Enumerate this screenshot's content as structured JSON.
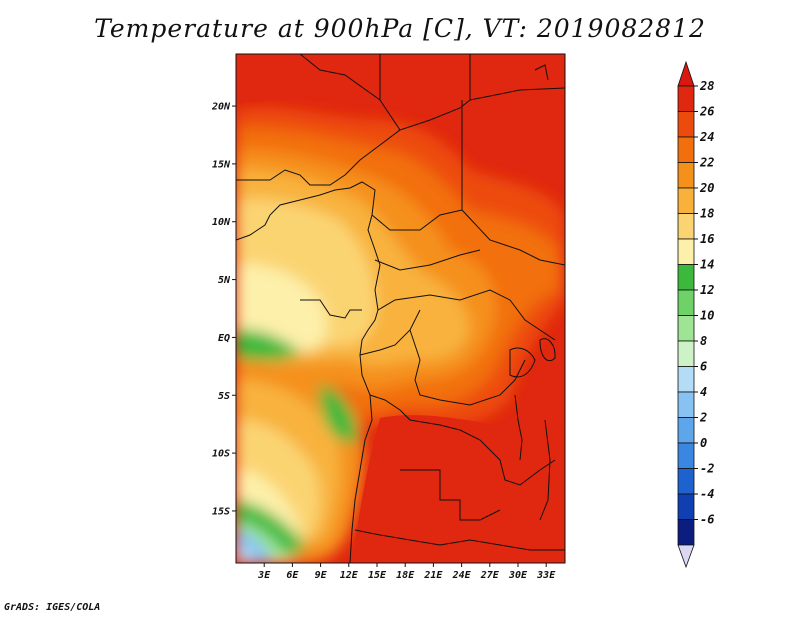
{
  "title": "Temperature at 900hPa [C], VT: 2019082812",
  "credit": "GrADS: IGES/COLA",
  "map": {
    "lon_range": [
      0,
      35
    ],
    "lat_range": [
      -19.5,
      24.5
    ],
    "lon_ticks": [
      {
        "lon": 3,
        "label": "3E"
      },
      {
        "lon": 6,
        "label": "6E"
      },
      {
        "lon": 9,
        "label": "9E"
      },
      {
        "lon": 12,
        "label": "12E"
      },
      {
        "lon": 15,
        "label": "15E"
      },
      {
        "lon": 18,
        "label": "18E"
      },
      {
        "lon": 21,
        "label": "21E"
      },
      {
        "lon": 24,
        "label": "24E"
      },
      {
        "lon": 27,
        "label": "27E"
      },
      {
        "lon": 30,
        "label": "30E"
      },
      {
        "lon": 33,
        "label": "33E"
      }
    ],
    "lat_ticks": [
      {
        "lat": 20,
        "label": "20N"
      },
      {
        "lat": 15,
        "label": "15N"
      },
      {
        "lat": 10,
        "label": "10N"
      },
      {
        "lat": 5,
        "label": "5N"
      },
      {
        "lat": 0,
        "label": "EQ"
      },
      {
        "lat": -5,
        "label": "5S"
      },
      {
        "lat": -10,
        "label": "10S"
      },
      {
        "lat": -15,
        "label": "15S"
      }
    ]
  },
  "colorbar": {
    "levels": [
      {
        "label": "28",
        "color": "#e0270f"
      },
      {
        "label": "26",
        "color": "#ed4b0d"
      },
      {
        "label": "24",
        "color": "#f26f0e"
      },
      {
        "label": "22",
        "color": "#f5901a"
      },
      {
        "label": "20",
        "color": "#f8b23c"
      },
      {
        "label": "18",
        "color": "#fbd472"
      },
      {
        "label": "16",
        "color": "#fdf0aa"
      },
      {
        "label": "14",
        "color": "#3cb93c"
      },
      {
        "label": "12",
        "color": "#6ed268"
      },
      {
        "label": "10",
        "color": "#9ee494"
      },
      {
        "label": "8",
        "color": "#cdf2c6"
      },
      {
        "label": "6",
        "color": "#b5dcf7"
      },
      {
        "label": "4",
        "color": "#88c2f3"
      },
      {
        "label": "2",
        "color": "#5ea6ec"
      },
      {
        "label": "0",
        "color": "#3b86e0"
      },
      {
        "label": "-2",
        "color": "#1e62d0"
      },
      {
        "label": "-4",
        "color": "#0f3fb0"
      },
      {
        "label": "-6",
        "color": "#0b1e80"
      }
    ],
    "top_color": "#d9180f",
    "bottom_color": "#dcd8f4"
  }
}
